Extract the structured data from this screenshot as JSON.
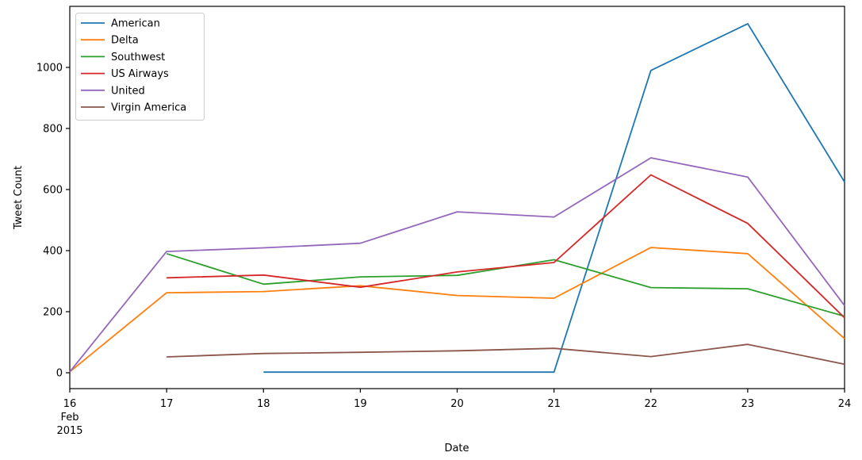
{
  "figure": {
    "background": "#ffffff",
    "text_color": "#000000",
    "spine_color": "#000000",
    "legend_border_color": "#cccccc"
  },
  "chart_data": {
    "type": "line",
    "title": "",
    "xlabel": "Date",
    "ylabel": "Tweet Count",
    "x_axis_unit": "day of February 2015",
    "xlim": [
      16,
      24
    ],
    "ylim": [
      -52,
      1200
    ],
    "x_ticks": [
      16,
      17,
      18,
      19,
      20,
      21,
      22,
      23,
      24
    ],
    "x_tick_labels": [
      "16",
      "17",
      "18",
      "19",
      "20",
      "21",
      "22",
      "23",
      "24"
    ],
    "x_first_tick_sublabels": [
      "Feb",
      "2015"
    ],
    "y_ticks": [
      0,
      200,
      400,
      600,
      800,
      1000
    ],
    "grid": false,
    "legend_position": "upper left",
    "series": [
      {
        "name": "American",
        "color": "#1f77b4",
        "x": [
          18,
          19,
          20,
          21,
          22,
          23,
          24
        ],
        "y": [
          2,
          2,
          2,
          2,
          990,
          1143,
          625
        ]
      },
      {
        "name": "Delta",
        "color": "#ff7f0e",
        "x": [
          16,
          17,
          18,
          19,
          20,
          21,
          22,
          23,
          24
        ],
        "y": [
          3,
          262,
          266,
          285,
          253,
          244,
          410,
          390,
          112
        ]
      },
      {
        "name": "Southwest",
        "color": "#2ca02c",
        "x": [
          17,
          18,
          19,
          20,
          21,
          22,
          23,
          24
        ],
        "y": [
          390,
          290,
          314,
          319,
          370,
          279,
          275,
          185
        ]
      },
      {
        "name": "US Airways",
        "color": "#d62728",
        "x": [
          17,
          18,
          19,
          20,
          21,
          22,
          23,
          24
        ],
        "y": [
          311,
          320,
          280,
          330,
          361,
          648,
          489,
          180
        ]
      },
      {
        "name": "United",
        "color": "#9467bd",
        "x": [
          16,
          17,
          18,
          19,
          20,
          21,
          22,
          23,
          24
        ],
        "y": [
          3,
          397,
          409,
          424,
          527,
          510,
          704,
          641,
          220
        ]
      },
      {
        "name": "Virgin America",
        "color": "#8c564b",
        "x": [
          17,
          18,
          19,
          20,
          21,
          22,
          23,
          24
        ],
        "y": [
          52,
          63,
          67,
          72,
          80,
          53,
          93,
          28
        ]
      }
    ]
  }
}
